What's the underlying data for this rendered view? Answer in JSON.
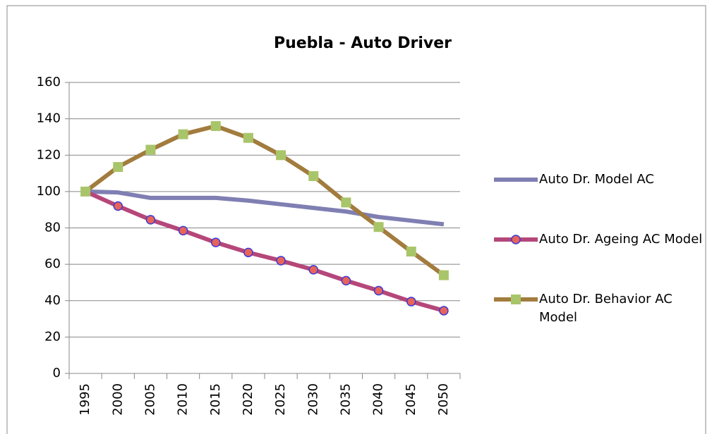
{
  "chart_data": {
    "type": "line",
    "title": "Puebla - Auto Driver",
    "categories": [
      "1995",
      "2000",
      "2005",
      "2010",
      "2015",
      "2020",
      "2025",
      "2030",
      "2035",
      "2040",
      "2045",
      "2050"
    ],
    "series": [
      {
        "name": "Auto Dr. Model AC",
        "color": "#7f7fb3",
        "marker": "none",
        "values": [
          100,
          99.5,
          96.5,
          96.5,
          96.5,
          95,
          93,
          91,
          89,
          86,
          84,
          82
        ]
      },
      {
        "name": "Auto Dr. Ageing AC Model",
        "color": "#b5477a",
        "marker": "circle",
        "marker_color": "#e8635a",
        "marker_edge": "#3b3bd6",
        "values": [
          100,
          92,
          84.5,
          78.5,
          72,
          66.5,
          62,
          57,
          51,
          45.5,
          39.5,
          34.5
        ]
      },
      {
        "name": "Auto Dr. Behavior AC Model",
        "color": "#a27c3e",
        "marker": "square",
        "marker_color": "#a9c56a",
        "values": [
          100,
          113.5,
          123,
          131.5,
          136,
          129.5,
          120,
          108.5,
          94,
          80.5,
          67,
          54
        ]
      }
    ],
    "ylim": [
      0,
      160
    ],
    "yticks": [
      0,
      20,
      40,
      60,
      80,
      100,
      120,
      140,
      160
    ],
    "grid": true,
    "legend": "right"
  }
}
